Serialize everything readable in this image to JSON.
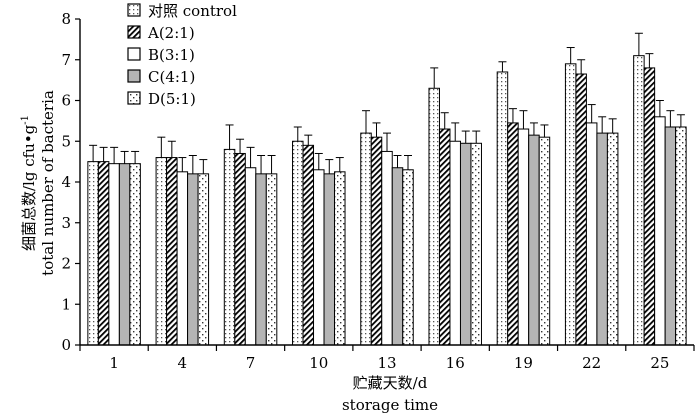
{
  "chart_data": {
    "type": "bar",
    "xlabel_line1": "贮藏天数/d",
    "xlabel_line2": "storage time",
    "ylabel_line1": "细菌总数/lg cfu•g",
    "ylabel_sup": "-1",
    "ylabel_line2": "total number of bacteria",
    "ylim": [
      0,
      8
    ],
    "yticks": [
      "0",
      "1",
      "2",
      "3",
      "4",
      "5",
      "6",
      "7",
      "8"
    ],
    "categories": [
      "1",
      "4",
      "7",
      "10",
      "13",
      "16",
      "19",
      "22",
      "25"
    ],
    "legend_position": "top-left",
    "series": [
      {
        "name": "对照 control",
        "pattern": "dots-white",
        "values": [
          4.5,
          4.6,
          4.8,
          5.0,
          5.2,
          6.3,
          6.7,
          6.9,
          7.1
        ],
        "errors": [
          0.4,
          0.5,
          0.6,
          0.35,
          0.55,
          0.5,
          0.25,
          0.4,
          0.55
        ]
      },
      {
        "name": "A(2:1)",
        "pattern": "diagonal-hatch",
        "values": [
          4.5,
          4.6,
          4.7,
          4.9,
          5.1,
          5.3,
          5.45,
          6.65,
          6.8
        ],
        "errors": [
          0.35,
          0.4,
          0.35,
          0.25,
          0.35,
          0.4,
          0.35,
          0.35,
          0.35
        ]
      },
      {
        "name": "B(3:1)",
        "pattern": "plain-white",
        "values": [
          4.45,
          4.25,
          4.35,
          4.3,
          4.75,
          5.0,
          5.3,
          5.45,
          5.6
        ],
        "errors": [
          0.4,
          0.35,
          0.5,
          0.4,
          0.45,
          0.45,
          0.45,
          0.45,
          0.4
        ]
      },
      {
        "name": "C(4:1)",
        "pattern": "gray",
        "values": [
          4.45,
          4.2,
          4.2,
          4.2,
          4.35,
          4.95,
          5.15,
          5.2,
          5.35
        ],
        "errors": [
          0.3,
          0.45,
          0.45,
          0.35,
          0.3,
          0.3,
          0.3,
          0.4,
          0.4
        ]
      },
      {
        "name": "D(5:1)",
        "pattern": "sparse-dots",
        "values": [
          4.45,
          4.2,
          4.2,
          4.25,
          4.3,
          4.95,
          5.1,
          5.2,
          5.35
        ],
        "errors": [
          0.3,
          0.35,
          0.45,
          0.35,
          0.35,
          0.3,
          0.3,
          0.35,
          0.3
        ]
      }
    ]
  }
}
